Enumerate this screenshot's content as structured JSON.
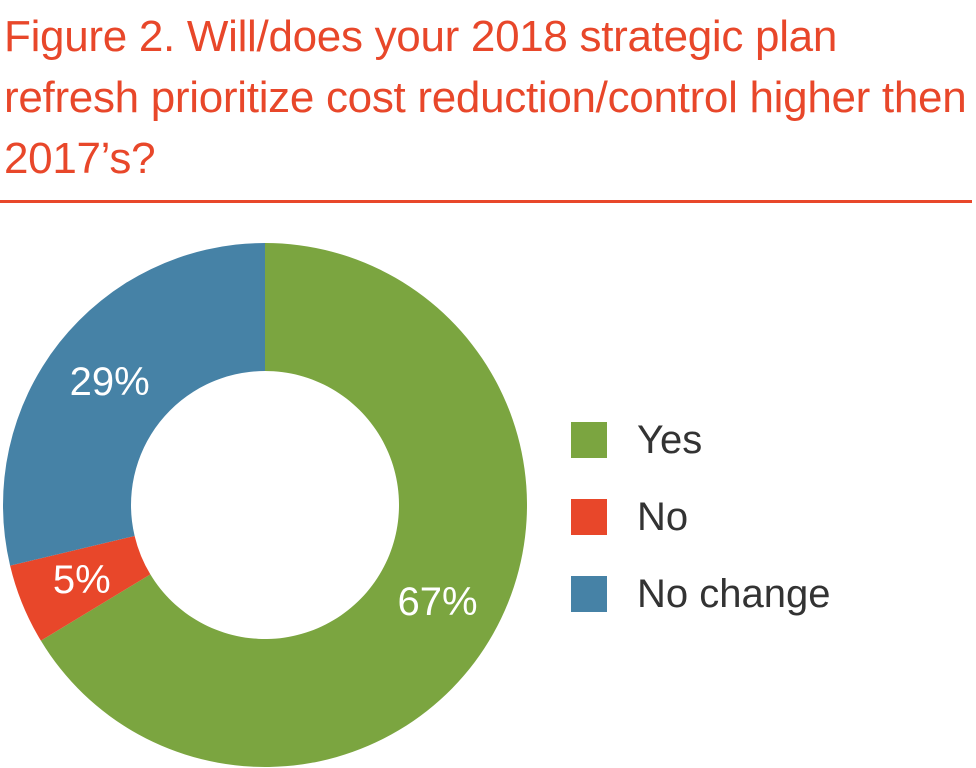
{
  "chart_data": {
    "type": "pie",
    "variant": "donut",
    "title": "Figure 2. Will/does your 2018 strategic plan refresh prioritize cost reduction/control higher then 2017’s?",
    "categories": [
      "Yes",
      "No",
      "No change"
    ],
    "values": [
      67,
      5,
      29
    ],
    "labels": [
      "67%",
      "5%",
      "29%"
    ],
    "colors": [
      "#7ba540",
      "#e8472a",
      "#4682a6"
    ],
    "legend_position": "right",
    "title_color": "#e8472a"
  }
}
